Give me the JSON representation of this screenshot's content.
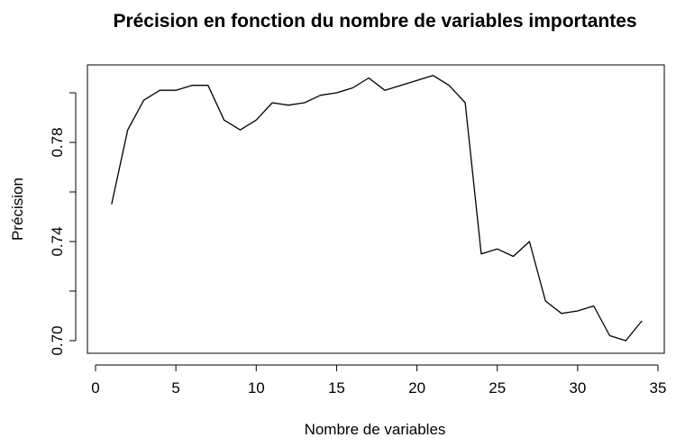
{
  "chart_data": {
    "type": "line",
    "title": "Précision en fonction du nombre de variables importantes",
    "xlabel": "Nombre de variables",
    "ylabel": "Précision",
    "xlim": [
      0,
      35
    ],
    "ylim": [
      0.7,
      0.81
    ],
    "xticks": [
      0,
      5,
      10,
      15,
      20,
      25,
      30,
      35
    ],
    "yticks": [
      0.7,
      0.74,
      0.78
    ],
    "ytick_labels": [
      "0.70",
      "0.74",
      "0.78"
    ],
    "grid": false,
    "line_color": "#000000",
    "series": [
      {
        "x": [
          1,
          2,
          3,
          4,
          5,
          6,
          7,
          8,
          9,
          10,
          11,
          12,
          13,
          14,
          15,
          16,
          17,
          18,
          19,
          20,
          21,
          22,
          23,
          24,
          25,
          26,
          27,
          28,
          29,
          30,
          31,
          32,
          33,
          34
        ],
        "y": [
          0.755,
          0.785,
          0.797,
          0.801,
          0.801,
          0.803,
          0.803,
          0.789,
          0.785,
          0.789,
          0.796,
          0.795,
          0.796,
          0.799,
          0.8,
          0.802,
          0.806,
          0.801,
          0.803,
          0.805,
          0.807,
          0.803,
          0.796,
          0.735,
          0.737,
          0.734,
          0.74,
          0.716,
          0.711,
          0.712,
          0.714,
          0.702,
          0.7,
          0.708
        ]
      }
    ]
  }
}
